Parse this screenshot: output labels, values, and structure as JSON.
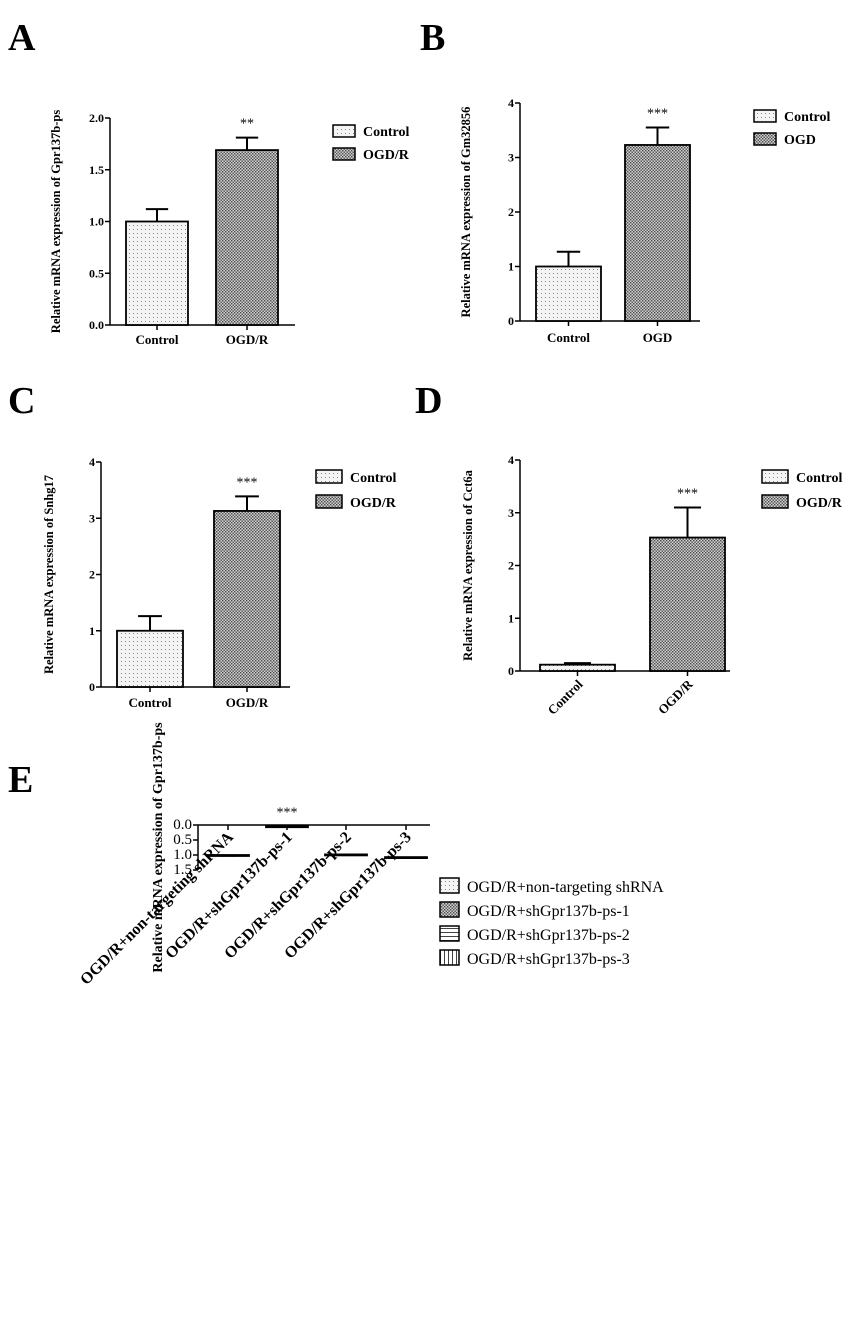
{
  "chart_data": [
    {
      "panel": "A",
      "type": "bar",
      "ylabel": "Relative mRNA expression of Gpr137b-ps",
      "categories": [
        "Control",
        "OGD/R"
      ],
      "values": [
        1.0,
        1.69
      ],
      "errors": [
        0.12,
        0.12
      ],
      "significance": [
        "",
        "**"
      ],
      "legend": [
        "Control",
        "OGD/R"
      ],
      "ylim": [
        0,
        2.0
      ],
      "yticks": [
        "0.0",
        "0.5",
        "1.0",
        "1.5",
        "2.0"
      ]
    },
    {
      "panel": "B",
      "type": "bar",
      "ylabel": "Relative mRNA expression of Gm32856",
      "categories": [
        "Control",
        "OGD"
      ],
      "values": [
        1.0,
        3.23
      ],
      "errors": [
        0.27,
        0.32
      ],
      "significance": [
        "",
        "***"
      ],
      "legend": [
        "Control",
        "OGD"
      ],
      "ylim": [
        0,
        4
      ],
      "yticks": [
        "0",
        "1",
        "2",
        "3",
        "4"
      ]
    },
    {
      "panel": "C",
      "type": "bar",
      "ylabel": "Relative mRNA expression of  Snhg17",
      "categories": [
        "Control",
        "OGD/R"
      ],
      "values": [
        1.0,
        3.13
      ],
      "errors": [
        0.26,
        0.26
      ],
      "significance": [
        "",
        "***"
      ],
      "legend": [
        "Control",
        "OGD/R"
      ],
      "ylim": [
        0,
        4
      ],
      "yticks": [
        "0",
        "1",
        "2",
        "3",
        "4"
      ]
    },
    {
      "panel": "D",
      "type": "bar",
      "ylabel": "Relative mRNA expression of Cct6a",
      "categories": [
        "Control",
        "OGD/R"
      ],
      "values": [
        0.12,
        2.53
      ],
      "errors": [
        0.03,
        0.57
      ],
      "significance": [
        "",
        "***"
      ],
      "legend": [
        "Control",
        "OGD/R"
      ],
      "ylim": [
        0,
        4
      ],
      "yticks": [
        "0",
        "1",
        "2",
        "3",
        "4"
      ]
    },
    {
      "panel": "E",
      "type": "bar",
      "ylabel": "Relative mRNA expression of Gpr137b-ps",
      "categories": [
        "OGD/R+non-targeting shRNA",
        "OGD/R+shGpr137b-ps-1",
        "OGD/R+shGpr137b-ps-2",
        "OGD/R+shGpr137b-ps-3"
      ],
      "values": [
        1.0,
        0.04,
        0.98,
        1.07
      ],
      "errors": [
        0.02,
        0.01,
        0.02,
        0.02
      ],
      "significance": [
        "",
        "***",
        "",
        ""
      ],
      "legend": [
        "OGD/R+non-targeting shRNA",
        "OGD/R+shGpr137b-ps-1",
        "OGD/R+shGpr137b-ps-2",
        "OGD/R+shGpr137b-ps-3"
      ],
      "ylim": [
        0,
        1.5
      ],
      "yticks": [
        "0.0",
        "0.5",
        "1.0",
        "1.5"
      ]
    }
  ]
}
